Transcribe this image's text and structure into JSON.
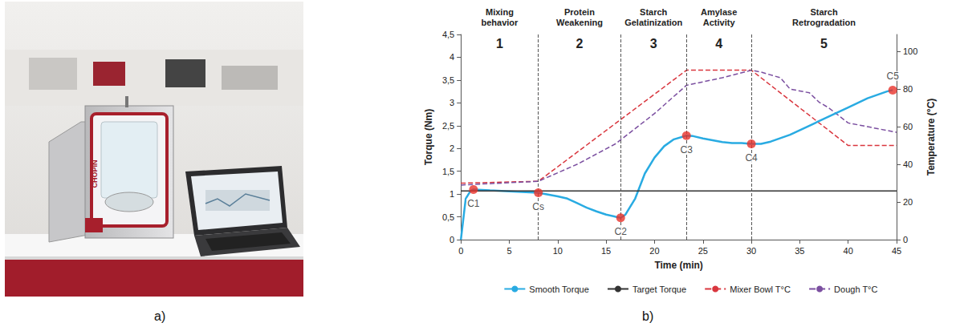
{
  "figure": {
    "panel_labels": [
      "a)",
      "b)"
    ],
    "photo_text": "CHOPIN"
  },
  "chart_data": {
    "type": "line",
    "x_label": "Time (min)",
    "y_label": "Torque (Nm)",
    "y2_label": "Temperature (°C)",
    "xlim": [
      0,
      45
    ],
    "xticks": [
      0,
      5,
      10,
      15,
      20,
      25,
      30,
      35,
      40,
      45
    ],
    "ylim": [
      0,
      4.5
    ],
    "yticks": [
      0,
      {
        "value": 0.5,
        "label": "0,5"
      },
      1,
      {
        "value": 1.5,
        "label": "1,5"
      },
      2,
      {
        "value": 2.5,
        "label": "2,5"
      },
      3,
      {
        "value": 3.5,
        "label": "3,5"
      },
      4,
      {
        "value": 4.5,
        "label": "4,5"
      }
    ],
    "y2lim": [
      0,
      109
    ],
    "y2ticks": [
      0,
      20,
      40,
      60,
      80,
      100
    ],
    "grid": false,
    "legend": "bottom",
    "sections": [
      {
        "title": "Mixing behavior",
        "number": 1,
        "start": 0,
        "end": 8
      },
      {
        "title": "Protein Weakening",
        "number": 2,
        "start": 8,
        "end": 16.5
      },
      {
        "title": "Starch Gelatinization",
        "number": 3,
        "start": 16.5,
        "end": 23.3
      },
      {
        "title": "Amylase Activity",
        "number": 4,
        "start": 23.3,
        "end": 30
      },
      {
        "title": "Starch Retrogradation",
        "number": 5,
        "start": 30,
        "end": 45
      }
    ],
    "points": {
      "color": "#e8322b",
      "items": [
        {
          "label": "C1",
          "x": 1.3,
          "y": 1.1
        },
        {
          "label": "Cs",
          "x": 8,
          "y": 1.03
        },
        {
          "label": "C2",
          "x": 16.5,
          "y": 0.48
        },
        {
          "label": "C3",
          "x": 23.3,
          "y": 2.28
        },
        {
          "label": "C4",
          "x": 30,
          "y": 2.1
        },
        {
          "label": "C5",
          "x": 44.6,
          "y": 3.28
        }
      ]
    },
    "series": [
      {
        "name": "Smooth Torque",
        "color": "#29abe2",
        "line_style": "solid",
        "x": [
          0,
          0.5,
          1,
          1.3,
          3,
          5,
          8,
          10,
          11,
          12,
          13,
          14,
          15,
          16,
          16.5,
          17,
          18,
          19,
          20,
          21,
          22,
          23.3,
          24,
          25,
          26,
          27,
          28,
          29,
          30,
          31,
          32,
          34,
          36,
          38,
          40,
          42,
          44,
          44.6
        ],
        "values": [
          0,
          0.9,
          1.07,
          1.1,
          1.08,
          1.06,
          1.03,
          0.95,
          0.9,
          0.8,
          0.7,
          0.62,
          0.55,
          0.5,
          0.48,
          0.55,
          0.9,
          1.45,
          1.8,
          2.05,
          2.2,
          2.28,
          2.27,
          2.22,
          2.18,
          2.14,
          2.12,
          2.12,
          2.1,
          2.1,
          2.15,
          2.3,
          2.5,
          2.7,
          2.9,
          3.1,
          3.25,
          3.28
        ]
      },
      {
        "name": "Target Torque",
        "color": "#333333",
        "line_style": "solid",
        "x": [
          0,
          45
        ],
        "values": [
          1.07,
          1.07
        ]
      },
      {
        "name": "Mixer Bowl T°C",
        "color": "#d9363e",
        "line_style": "dashed",
        "axis": "y2",
        "x": [
          0,
          8,
          23.3,
          30,
          40,
          45
        ],
        "values": [
          30,
          31,
          90,
          90,
          50,
          50
        ]
      },
      {
        "name": "Dough T°C",
        "color": "#7b4fa0",
        "line_style": "dashed",
        "axis": "y2",
        "x": [
          0,
          8,
          12,
          16,
          20,
          23.3,
          27,
          30,
          31,
          33,
          34,
          36,
          37,
          38,
          39,
          40,
          42,
          45
        ],
        "values": [
          29,
          31,
          40,
          51,
          67,
          82,
          86,
          90,
          89,
          86,
          80,
          78,
          73,
          70,
          66,
          62,
          60,
          57
        ]
      }
    ]
  }
}
